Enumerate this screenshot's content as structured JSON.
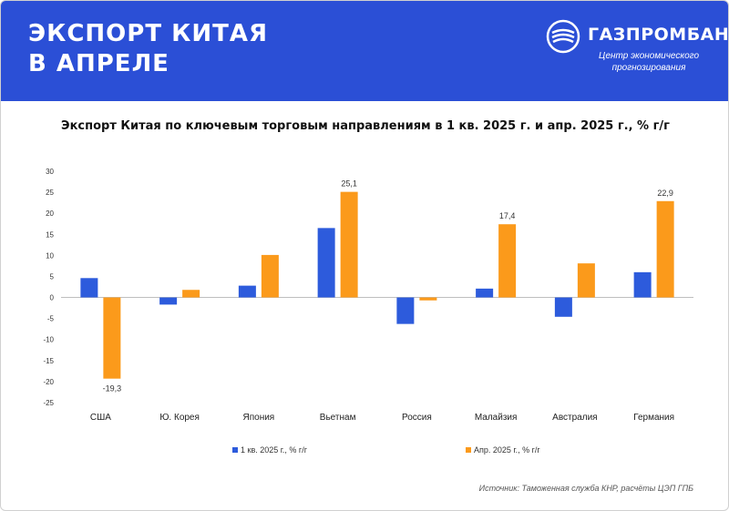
{
  "header": {
    "title_line1": "ЭКСПОРТ КИТАЯ",
    "title_line2": "В АПРЕЛЕ",
    "logo_name": "ГАЗПРОМБАНК",
    "logo_sub_line1": "Центр экономического",
    "logo_sub_line2": "прогнозирования",
    "bg_color": "#2b4fd6"
  },
  "chart_data": {
    "type": "bar",
    "title": "Экспорт Китая по ключевым торговым направлениям в 1 кв. 2025 г. и апр. 2025 г., % г/г",
    "categories": [
      "США",
      "Ю. Корея",
      "Япония",
      "Вьетнам",
      "Россия",
      "Малайзия",
      "Австралия",
      "Германия"
    ],
    "series": [
      {
        "name": "1 кв. 2025 г., % г/г",
        "color": "#2d5bdc",
        "values": [
          4.6,
          -1.7,
          2.8,
          16.5,
          -6.3,
          2.1,
          -4.6,
          6.0
        ]
      },
      {
        "name": "Апр. 2025 г., % г/г",
        "color": "#fb9a1b",
        "values": [
          -19.3,
          1.8,
          10.1,
          25.1,
          -0.7,
          17.4,
          8.1,
          22.9
        ],
        "labels": [
          "-19,3",
          null,
          null,
          "25,1",
          null,
          "17,4",
          null,
          "22,9"
        ]
      }
    ],
    "ylim": [
      -25,
      30
    ],
    "yticks": [
      30,
      25,
      20,
      15,
      10,
      5,
      0,
      -5,
      -10,
      -15,
      -20,
      -25
    ],
    "grid": false,
    "legend": "bottom"
  },
  "source": "Источник: Таможенная служба КНР, расчёты ЦЭП ГПБ"
}
